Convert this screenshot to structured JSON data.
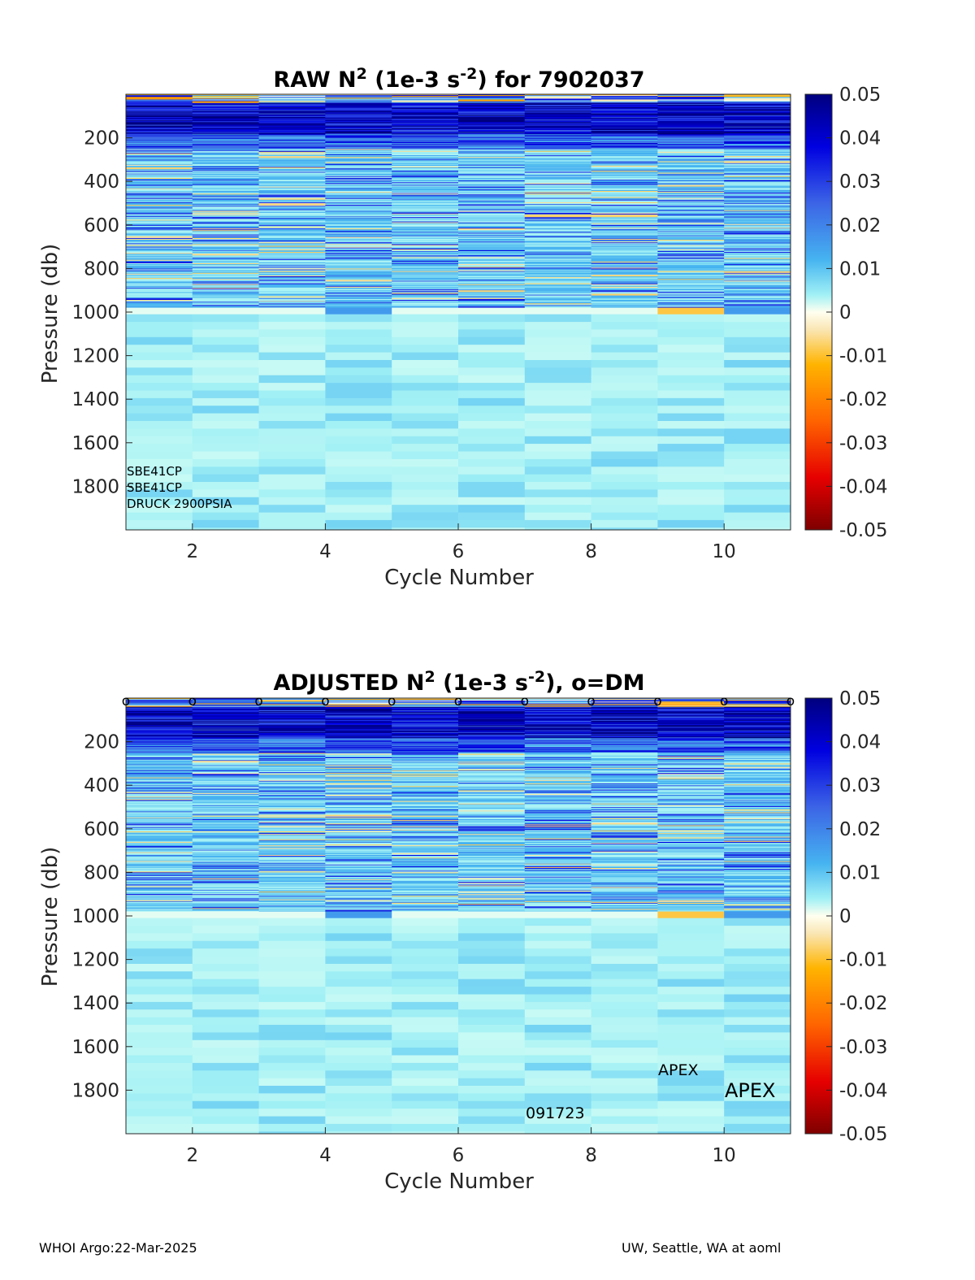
{
  "colorbar": {
    "ticks": [
      "0.05",
      "0.04",
      "0.03",
      "0.02",
      "0.01",
      "0",
      "-0.01",
      "-0.02",
      "-0.03",
      "-0.04",
      "-0.05"
    ]
  },
  "chart_data": [
    {
      "type": "heatmap",
      "title_main": "RAW N",
      "title_sup": "2",
      "title_mid": " (1e-3 s",
      "title_sup2": "-2",
      "title_end": ") for 7902037",
      "xlabel": "Cycle Number",
      "ylabel": "Pressure (db)",
      "x_ticks": [
        "2",
        "4",
        "6",
        "8",
        "10"
      ],
      "y_ticks": [
        "200",
        "400",
        "600",
        "800",
        "1000",
        "1200",
        "1400",
        "1600",
        "1800"
      ],
      "xlim": [
        1,
        11
      ],
      "ylim": [
        0,
        2000
      ],
      "y_reversed": true,
      "clim": [
        -0.05,
        0.05
      ],
      "colormap": "jet-like, white/cream at 0",
      "cycles": [
        1,
        2,
        3,
        4,
        5,
        6,
        7,
        8,
        9,
        10
      ],
      "annotations": [
        "SBE41CP",
        "SBE41CP",
        "DRUCK 2900PSIA"
      ]
    },
    {
      "type": "heatmap",
      "title_main": "ADJUSTED N",
      "title_sup": "2",
      "title_mid": " (1e-3 s",
      "title_sup2": "-2",
      "title_end": "), o=DM",
      "xlabel": "Cycle Number",
      "ylabel": "Pressure (db)",
      "x_ticks": [
        "2",
        "4",
        "6",
        "8",
        "10"
      ],
      "y_ticks": [
        "200",
        "400",
        "600",
        "800",
        "1000",
        "1200",
        "1400",
        "1600",
        "1800"
      ],
      "xlim": [
        1,
        11
      ],
      "ylim": [
        0,
        2000
      ],
      "y_reversed": true,
      "clim": [
        -0.05,
        0.05
      ],
      "cycles": [
        1,
        2,
        3,
        4,
        5,
        6,
        7,
        8,
        9,
        10
      ],
      "dm_marker": "o",
      "dm_cycles": [
        1,
        2,
        3,
        4,
        5,
        6,
        7,
        8,
        9,
        10,
        11
      ],
      "annotations": [
        "APEX",
        "APEX",
        "091723"
      ]
    }
  ],
  "footer": {
    "left": "WHOI Argo:22-Mar-2025",
    "right": "UW, Seattle, WA at aoml"
  }
}
